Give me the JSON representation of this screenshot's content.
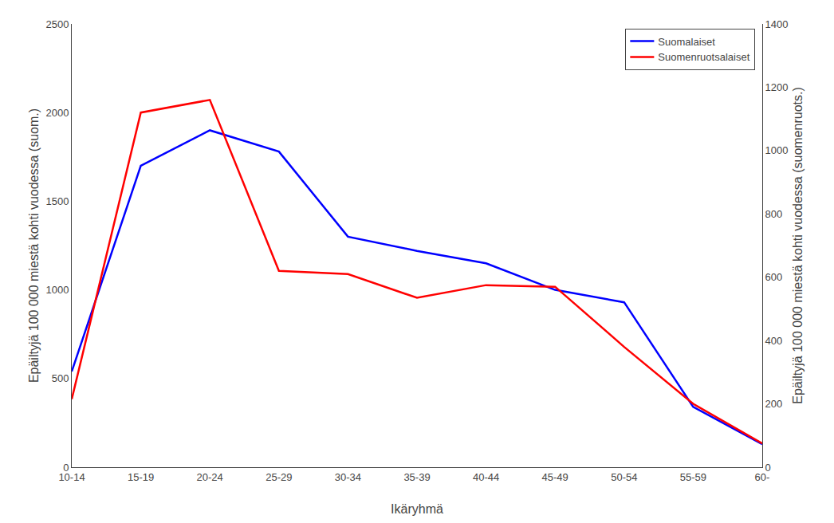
{
  "chart_data": {
    "type": "line",
    "xlabel": "Ikäryhmä",
    "ylabel": "Epäiltyjä 100 000 miestä kohti vuodessa (suom.)",
    "y2label": "Epäiltyjä 100 000 miestä kohti vuodessa (suomenruots.)",
    "categories": [
      "10-14",
      "15-19",
      "20-24",
      "25-29",
      "30-34",
      "35-39",
      "40-44",
      "45-49",
      "50-54",
      "55-59",
      "60-"
    ],
    "series": [
      {
        "name": "Suomalaiset",
        "color": "#0000FF",
        "values": [
          540,
          1700,
          1900,
          1780,
          1300,
          1220,
          1150,
          1000,
          930,
          340,
          130
        ]
      },
      {
        "name": "Suomenruotsalaiset",
        "color": "#FF0000",
        "axis": "y2",
        "values": [
          215,
          1120,
          1160,
          620,
          610,
          535,
          575,
          570,
          380,
          200,
          75
        ]
      }
    ],
    "ylim": [
      0,
      2500
    ],
    "yticks": [
      0,
      500,
      1000,
      1500,
      2000,
      2500
    ],
    "y2lim": [
      0,
      1400
    ],
    "y2ticks": [
      0,
      200,
      400,
      600,
      800,
      1000,
      1200,
      1400
    ],
    "grid": false,
    "legend": "upper right"
  }
}
